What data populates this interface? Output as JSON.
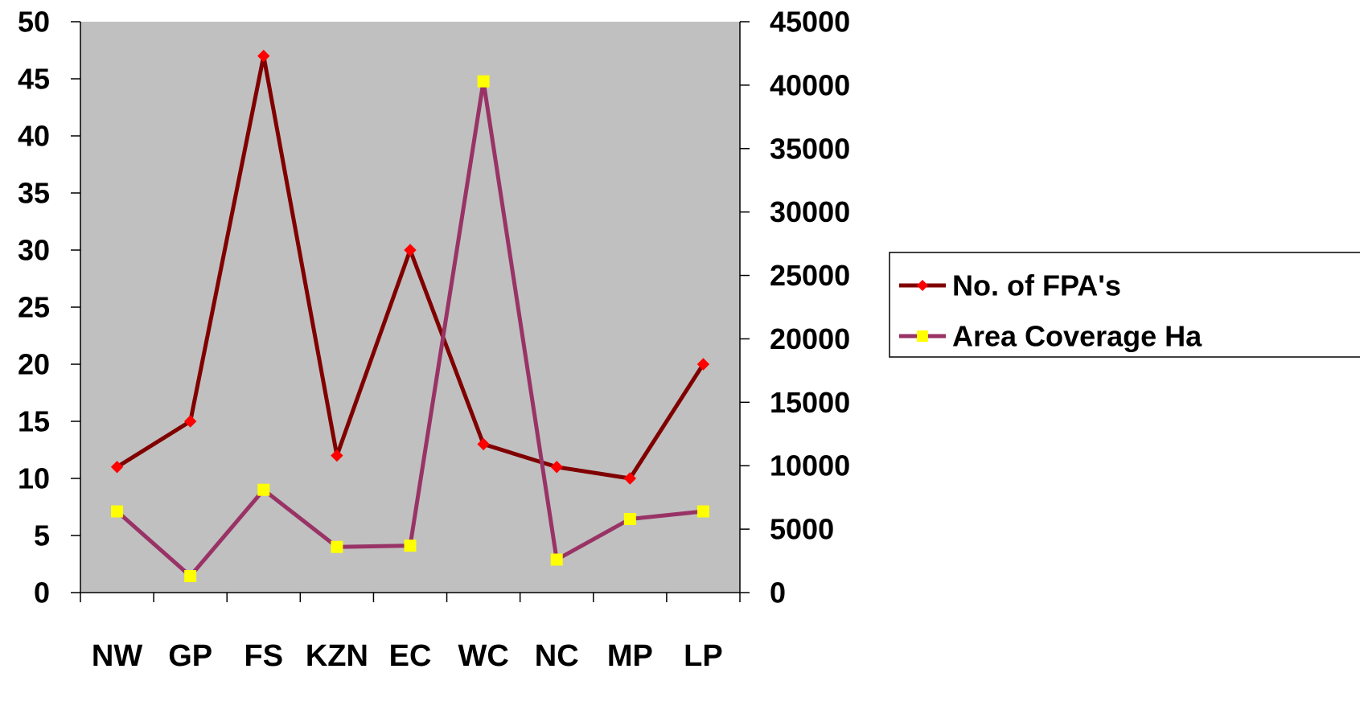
{
  "chart_data": {
    "type": "line",
    "categories": [
      "NW",
      "GP",
      "FS",
      "KZN",
      "EC",
      "WC",
      "NC",
      "MP",
      "LP"
    ],
    "y_left": {
      "range": [
        0,
        50
      ],
      "ticks": [
        0,
        5,
        10,
        15,
        20,
        25,
        30,
        35,
        40,
        45,
        50
      ]
    },
    "y_right": {
      "range": [
        0,
        45000
      ],
      "ticks": [
        0,
        5000,
        10000,
        15000,
        20000,
        25000,
        30000,
        35000,
        40000,
        45000
      ]
    },
    "grid": false,
    "legend_position": "right",
    "plot_background": "#c0c0c0",
    "series": [
      {
        "name": "No. of FPA's",
        "axis": "left",
        "line_color": "#800000",
        "marker": "diamond",
        "marker_color": "#ff0000",
        "values": [
          11,
          15,
          47,
          12,
          30,
          13,
          11,
          10,
          20
        ]
      },
      {
        "name": "Area Coverage Ha",
        "axis": "right",
        "line_color": "#993366",
        "marker": "square",
        "marker_color": "#ffff00",
        "values": [
          6400,
          1300,
          8100,
          3600,
          3700,
          40300,
          2600,
          5800,
          6400
        ]
      }
    ]
  }
}
